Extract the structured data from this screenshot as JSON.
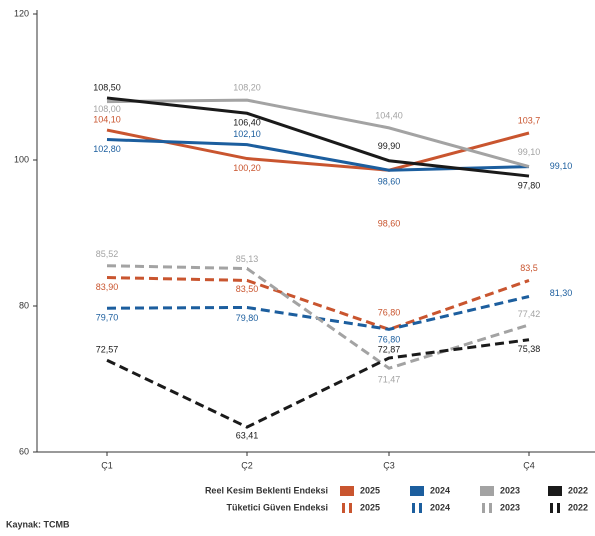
{
  "chart_data": {
    "type": "line",
    "categories": [
      "Ç1",
      "Ç2",
      "Ç3",
      "Ç4"
    ],
    "ylim": [
      60,
      120
    ],
    "yticks": [
      60,
      80,
      100,
      120
    ],
    "legend_groups": [
      "Reel Kesim Beklenti Endeksi",
      "Tüketici Güven Endeksi"
    ],
    "source": "Kaynak: TCMB",
    "series": [
      {
        "name": "2025",
        "group": 0,
        "color": "#c9552f",
        "values": [
          104.1,
          100.2,
          98.6,
          103.7
        ],
        "value_labels": [
          "104,10",
          "100,20",
          "98,60",
          "103,7"
        ]
      },
      {
        "name": "2024",
        "group": 0,
        "color": "#1c5e9e",
        "values": [
          102.8,
          102.1,
          98.6,
          99.1
        ],
        "value_labels": [
          "102,80",
          "102,10",
          "98,60",
          "99,10"
        ]
      },
      {
        "name": "2023",
        "group": 0,
        "color": "#a3a3a3",
        "values": [
          108.0,
          108.2,
          104.4,
          99.1
        ],
        "value_labels": [
          "108,00",
          "108,20",
          "104,40",
          "99,10"
        ]
      },
      {
        "name": "2022",
        "group": 0,
        "color": "#1a1a1a",
        "values": [
          108.5,
          106.4,
          99.9,
          97.8
        ],
        "value_labels": [
          "108,50",
          "106,40",
          "99,90",
          "97,80"
        ]
      },
      {
        "name": "2025",
        "group": 1,
        "color": "#c9552f",
        "values": [
          83.9,
          83.5,
          76.8,
          83.5
        ],
        "value_labels": [
          "83,90",
          "83,50",
          "76,80",
          "83,5"
        ]
      },
      {
        "name": "2024",
        "group": 1,
        "color": "#1c5e9e",
        "values": [
          79.7,
          79.8,
          76.8,
          81.3
        ],
        "value_labels": [
          "79,70",
          "79,80",
          "76,80",
          "81,30"
        ]
      },
      {
        "name": "2023",
        "group": 1,
        "color": "#a3a3a3",
        "values": [
          85.52,
          85.13,
          71.47,
          77.42
        ],
        "value_labels": [
          "85,52",
          "85,13",
          "71,47",
          "77,42"
        ]
      },
      {
        "name": "2022",
        "group": 1,
        "color": "#1a1a1a",
        "values": [
          72.57,
          63.41,
          72.87,
          75.38
        ],
        "value_labels": [
          "72,57",
          "63,41",
          "72,87",
          "75,38"
        ]
      }
    ]
  }
}
